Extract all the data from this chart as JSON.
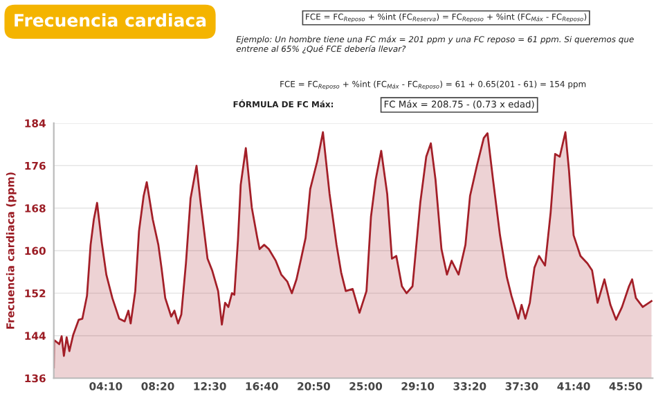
{
  "chart_data": {
    "type": "area",
    "title": "Frecuencia cardiaca",
    "ylabel": "Frecuencia cardiaca (ppm)",
    "annotations": [
      "FCE = FC$_{Reposo}$ + %int (FC$_{Reserva}$) = FC$_{Reposo}$ + %int (FC$_{Máx}$ - FC$_{Reposo}$)",
      "Ejemplo: Un hombre tiene una FC máx = 201 ppm y una FC reposo = 61 ppm. Si queremos que entrene al 65% ¿Qué FCE debería llevar?",
      "FCE = FC$_{Reposo}$ + %int (FC$_{Máx}$ - FC$_{Reposo}$) = 61 + 0.65(201 - 61) = 154 ppm",
      "FÓRMULA DE FC Máx:",
      "FC Máx = 208.75 - (0.73 x edad)"
    ],
    "series": [
      {
        "color": "#a31f28",
        "x": [
          0,
          0.02,
          0.07,
          0.44,
          0.63,
          0.81,
          1.03,
          1.25,
          1.55,
          2.0,
          2.29,
          2.66,
          2.95,
          3.21,
          3.47,
          3.84,
          4.21,
          4.69,
          5.24,
          5.68,
          5.98,
          6.16,
          6.53,
          6.83,
          7.2,
          7.45,
          7.93,
          8.38,
          8.63,
          8.93,
          9.41,
          9.67,
          9.96,
          10.22,
          10.59,
          10.96,
          11.44,
          11.77,
          12.32,
          12.69,
          13.17,
          13.47,
          13.73,
          13.99,
          14.28,
          14.47,
          14.76,
          14.98,
          15.39,
          15.87,
          16.31,
          16.49,
          16.86,
          17.23,
          17.79,
          18.23,
          18.71,
          19.08,
          19.45,
          19.82,
          20.18,
          20.55,
          21.11,
          21.57,
          22.1,
          22.66,
          23.03,
          23.4,
          23.95,
          24.5,
          25.06,
          25.42,
          25.8,
          26.24,
          26.72,
          27.1,
          27.45,
          27.9,
          28.27,
          28.75,
          29.37,
          29.85,
          30.22,
          30.59,
          31.07,
          31.51,
          31.88,
          32.44,
          32.99,
          33.36,
          33.91,
          34.46,
          34.76,
          35.2,
          35.76,
          36.31,
          36.68,
          37.23,
          37.49,
          37.79,
          38.15,
          38.52,
          38.89,
          39.37,
          39.82,
          40.18,
          40.55,
          41.0,
          41.29,
          41.66,
          42.21,
          42.77,
          43.14,
          43.58,
          44.13,
          44.61,
          45.06,
          45.54,
          46.1,
          46.35,
          46.65,
          47.2,
          47.9
        ],
        "values": [
          138.0,
          143.0,
          143.1,
          142.4,
          143.9,
          140.2,
          143.7,
          141.1,
          144.1,
          147.0,
          147.2,
          151.5,
          161.1,
          165.9,
          169.0,
          161.6,
          155.5,
          151.1,
          147.2,
          146.7,
          148.7,
          146.3,
          152.4,
          163.7,
          170.3,
          172.9,
          165.9,
          161.1,
          156.8,
          151.1,
          147.6,
          148.7,
          146.3,
          148.0,
          157.6,
          169.8,
          176.0,
          169.0,
          158.5,
          156.3,
          152.4,
          146.1,
          150.2,
          149.4,
          152.0,
          151.7,
          162.0,
          172.4,
          179.3,
          168.1,
          162.4,
          160.3,
          161.1,
          160.3,
          158.1,
          155.5,
          154.2,
          152.0,
          154.6,
          158.5,
          162.4,
          171.6,
          176.8,
          182.3,
          170.7,
          161.1,
          155.9,
          152.4,
          152.8,
          148.3,
          152.4,
          166.4,
          173.4,
          178.8,
          170.7,
          158.5,
          159.0,
          153.3,
          152.0,
          153.3,
          169.0,
          177.7,
          180.2,
          173.4,
          160.3,
          155.5,
          158.1,
          155.5,
          161.1,
          170.3,
          176.0,
          181.2,
          182.1,
          173.4,
          162.9,
          155.0,
          151.5,
          147.2,
          149.8,
          147.2,
          150.2,
          156.8,
          159.0,
          157.2,
          167.2,
          178.2,
          177.7,
          182.3,
          175.1,
          162.9,
          159.0,
          157.6,
          156.3,
          150.2,
          154.6,
          149.8,
          147.0,
          149.4,
          153.3,
          154.6,
          151.1,
          149.4,
          150.5
        ]
      }
    ],
    "xlim": [
      0,
      48
    ],
    "xticks": [
      {
        "value": 4.1667,
        "label": "04:10"
      },
      {
        "value": 8.3333,
        "label": "08:20"
      },
      {
        "value": 12.5,
        "label": "12:30"
      },
      {
        "value": 16.6667,
        "label": "16:40"
      },
      {
        "value": 20.8333,
        "label": "20:50"
      },
      {
        "value": 25,
        "label": "25:00"
      },
      {
        "value": 29.1667,
        "label": "29:10"
      },
      {
        "value": 33.3333,
        "label": "33:20"
      },
      {
        "value": 37.5,
        "label": "37:30"
      },
      {
        "value": 41.6667,
        "label": "41:40"
      },
      {
        "value": 45.8333,
        "label": "45:50"
      }
    ],
    "ylim": [
      136,
      184
    ],
    "yticks": [
      136,
      144,
      152,
      160,
      168,
      176,
      184
    ],
    "grid": "y"
  }
}
